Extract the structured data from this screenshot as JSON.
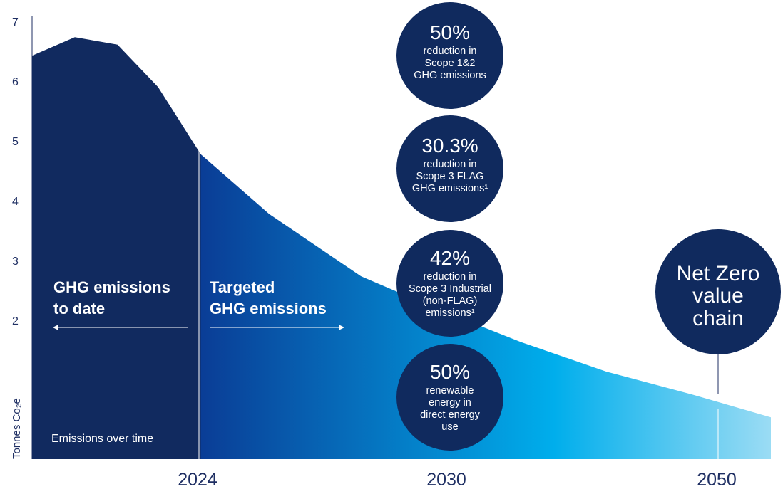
{
  "chart_data": {
    "type": "area",
    "ylabel": "Tonnes Co₂e",
    "y_ticks": [
      "7",
      "6",
      "5",
      "4",
      "3",
      "2"
    ],
    "ylim": [
      0,
      7.2
    ],
    "xlim": [
      2018.1,
      2052.7
    ],
    "x_ticks": [
      "2024",
      "2030",
      "2050"
    ],
    "boundary_x": 2024,
    "series": [
      {
        "values_to_date": [
          {
            "x": 2018.1,
            "y": 6.55
          },
          {
            "x": 2020.1,
            "y": 6.85
          },
          {
            "x": 2022.1,
            "y": 6.73
          },
          {
            "x": 2024.0,
            "y": 6.04
          },
          {
            "x": 2026.0,
            "y": 4.95
          }
        ]
      },
      {
        "values_targeted": [
          {
            "x": 2026.0,
            "y": 4.95
          },
          {
            "x": 2029.2,
            "y": 3.98
          },
          {
            "x": 2033.5,
            "y": 2.97
          },
          {
            "x": 2037.0,
            "y": 2.45
          },
          {
            "x": 2041.0,
            "y": 1.9
          },
          {
            "x": 2045.0,
            "y": 1.42
          },
          {
            "x": 2049.0,
            "y": 1.05
          },
          {
            "x": 2052.7,
            "y": 0.68
          }
        ]
      }
    ],
    "colors": {
      "to_date": "#112a5f",
      "targeted_start": "#0a3d96",
      "targeted_mid": "#00aeec",
      "targeted_end": "#9bdcf4",
      "circle": "#102a5e"
    },
    "annotations": {
      "left_title": [
        "GHG emissions",
        "to date"
      ],
      "right_title": [
        "Targeted",
        "GHG emissions"
      ],
      "footer_label": "Emissions over time",
      "circles": [
        {
          "big": "50%",
          "lines": [
            "reduction in",
            "Scope 1&2",
            "GHG emissions"
          ]
        },
        {
          "big": "30.3%",
          "lines": [
            "reduction in",
            "Scope 3 FLAG",
            "GHG emissions¹"
          ]
        },
        {
          "big": "42%",
          "lines": [
            "reduction in",
            "Scope 3 Industrial",
            "(non-FLAG)",
            "emissions¹"
          ]
        },
        {
          "big": "50%",
          "lines": [
            "renewable",
            "energy in",
            "direct energy",
            "use"
          ]
        }
      ],
      "net_zero": [
        "Net Zero",
        "value",
        "chain"
      ]
    }
  }
}
